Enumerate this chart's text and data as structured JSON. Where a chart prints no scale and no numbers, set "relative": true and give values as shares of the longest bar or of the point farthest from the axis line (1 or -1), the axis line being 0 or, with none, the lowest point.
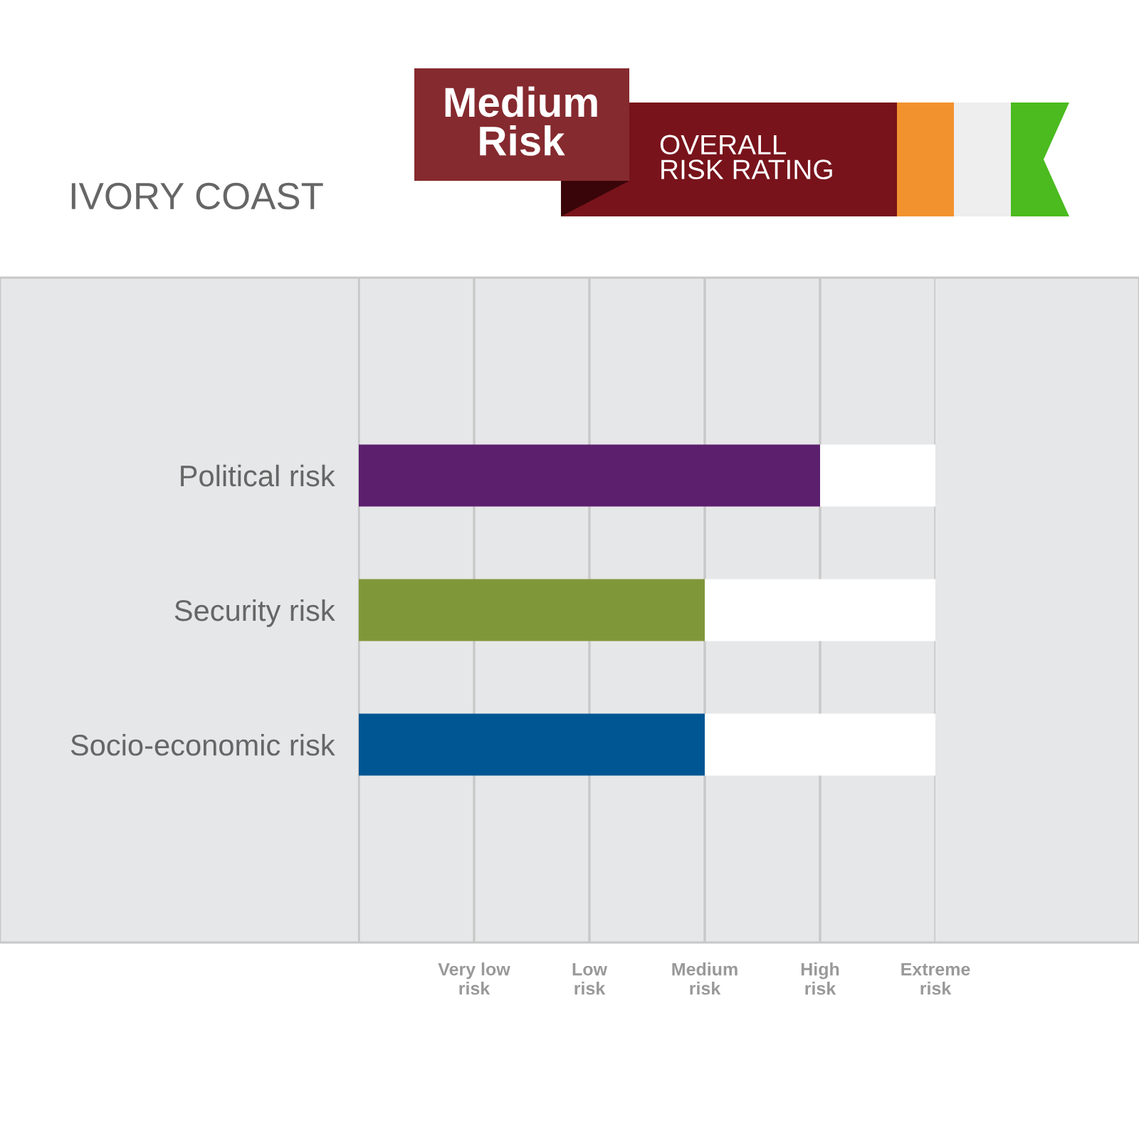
{
  "chart_data": {
    "type": "bar",
    "orientation": "horizontal",
    "stacked": true,
    "relative": true,
    "title": "IVORY COAST",
    "categories": [
      "Political risk",
      "Security risk",
      "Socio-economic risk"
    ],
    "series": [
      {
        "colors": [
          "#5c1f6e",
          "#809739",
          "#005693"
        ],
        "values": [
          0.8,
          0.6,
          0.6
        ]
      },
      {
        "color": "#ffffff",
        "values": [
          0.2,
          0.4,
          0.4
        ]
      }
    ],
    "grid": "x",
    "annotations": [
      "Medium\nRisk",
      "OVERALL\nRISK RATING",
      "Very low\nrisk",
      "Low\nrisk",
      "Medium\nrisk",
      "High\nrisk",
      "Extreme\nrisk"
    ]
  }
}
